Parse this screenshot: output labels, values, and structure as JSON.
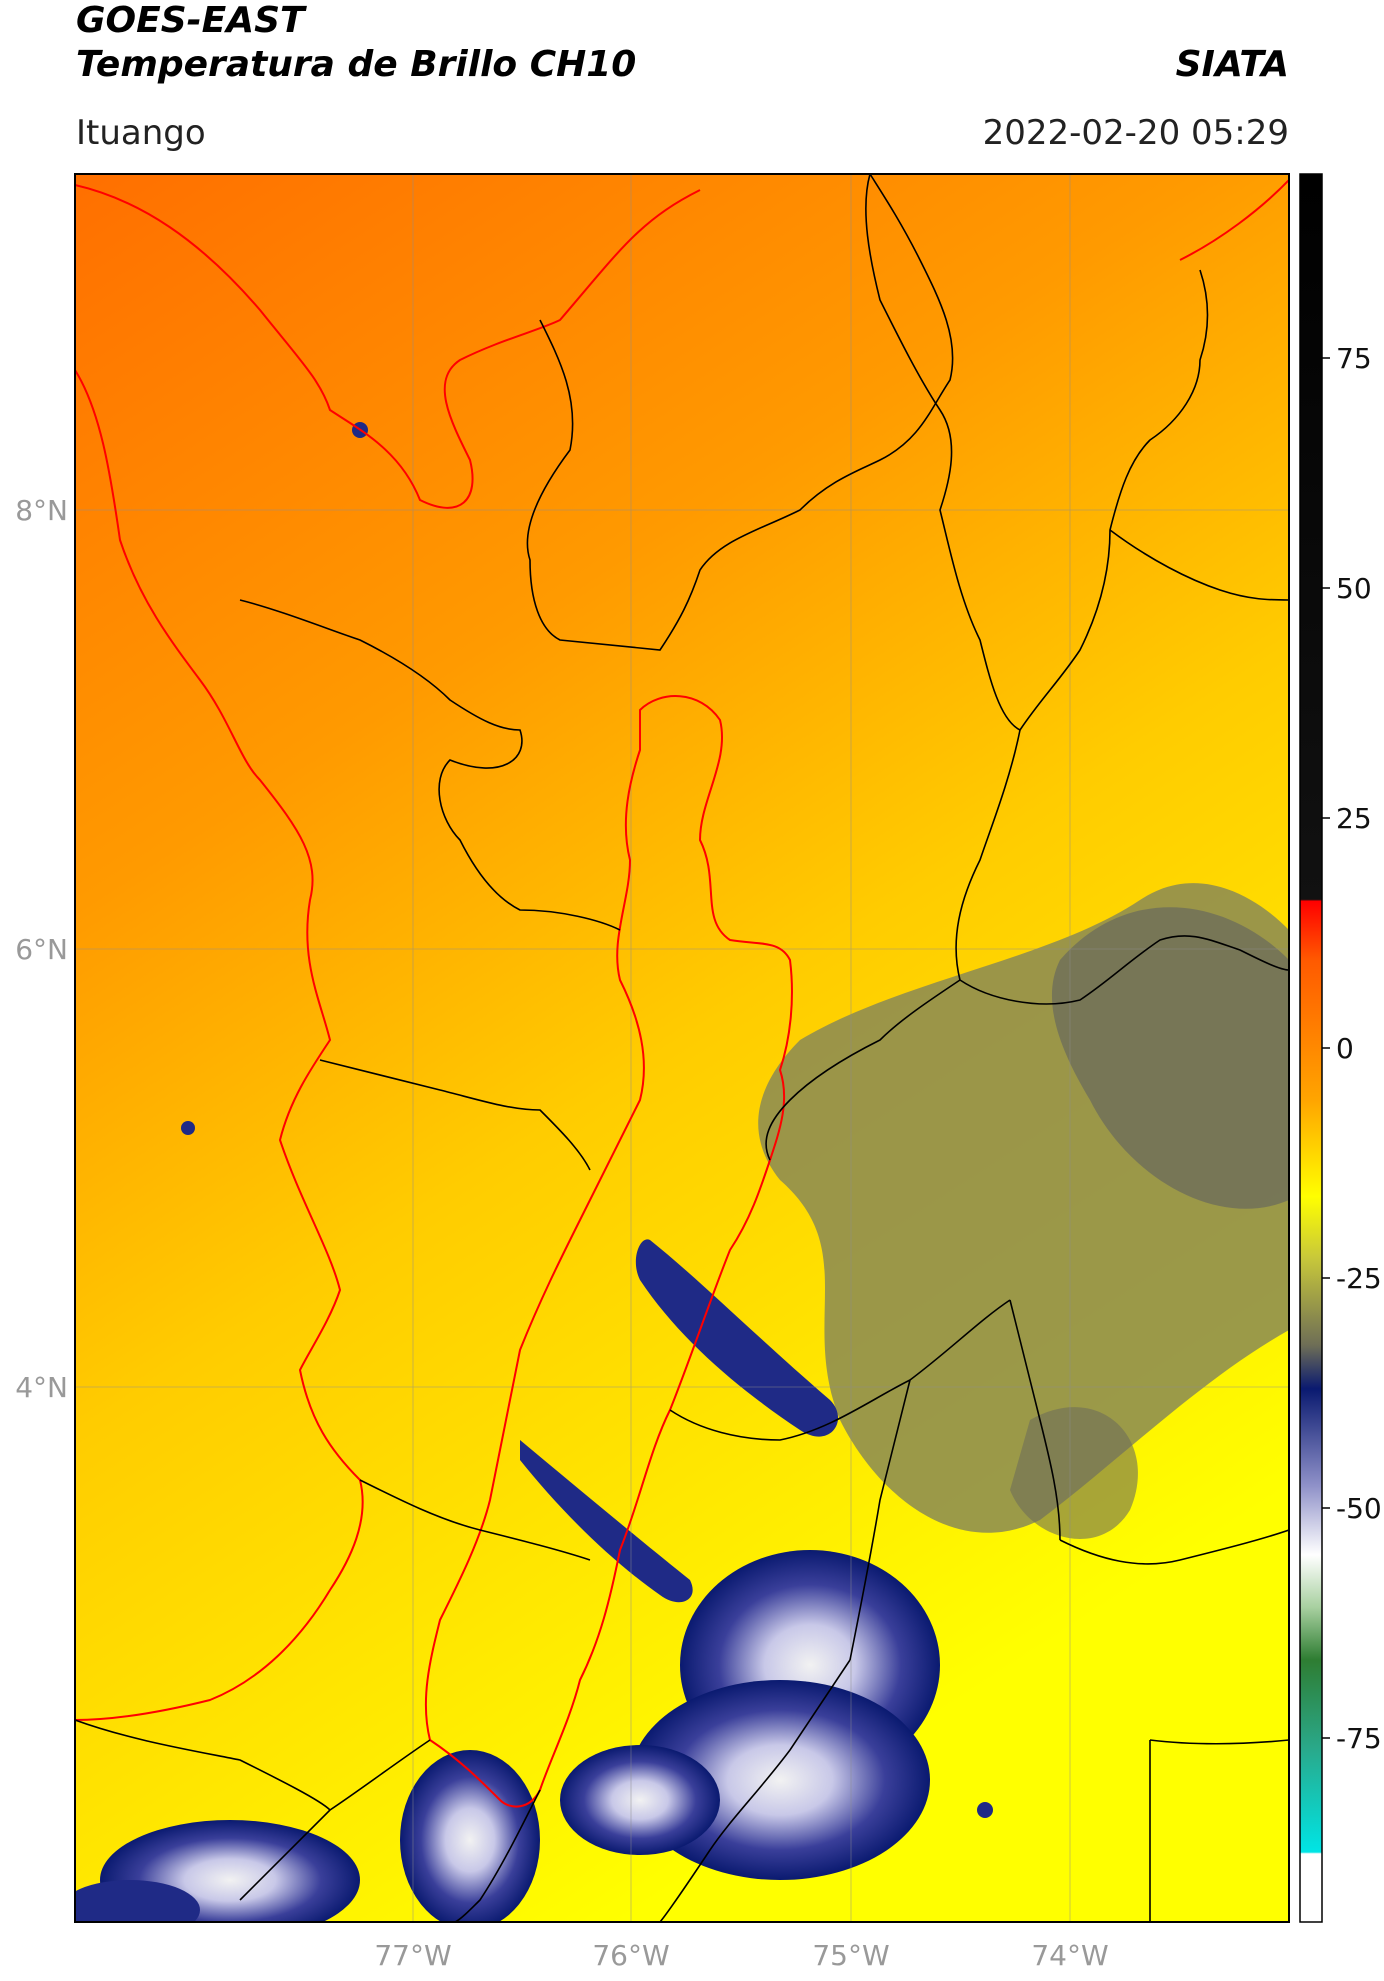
{
  "header": {
    "satellite": "GOES-EAST",
    "product": "Temperatura de Brillo CH10",
    "brand": "SIATA",
    "region": "Ituango",
    "timestamp": "2022-02-20 05:29"
  },
  "map": {
    "lon_ticks": [
      "77°W",
      "76°W",
      "75°W",
      "74°W"
    ],
    "lat_ticks": [
      "8°N",
      "6°N",
      "4°N"
    ]
  },
  "colorbar": {
    "ticks": [
      "75",
      "50",
      "25",
      "0",
      "-25",
      "-50",
      "-75"
    ],
    "range": [
      -95,
      95
    ],
    "colors": {
      "black": "#000000",
      "red": "#ff0000",
      "orange": "#ff8c00",
      "yellow": "#ffff00",
      "olive": "#80804a",
      "navy": "#0a1a70",
      "white": "#ffffff",
      "green": "#2e7d32",
      "cyan": "#00e5e5"
    }
  }
}
